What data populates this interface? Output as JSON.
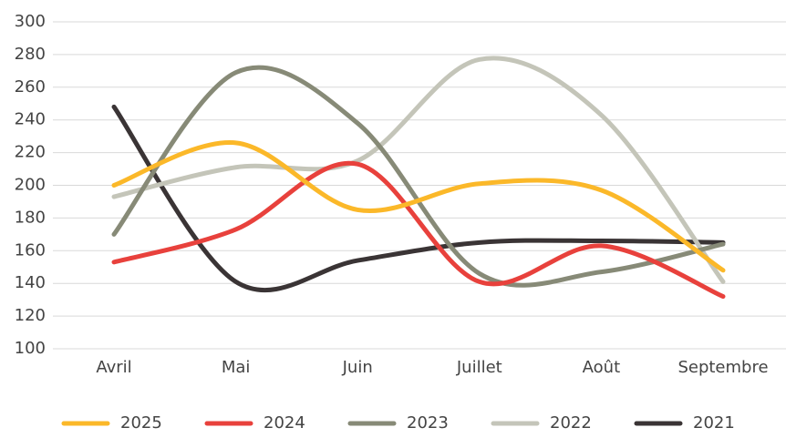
{
  "chart_data": {
    "type": "line",
    "smooth": true,
    "categories": [
      "Avril",
      "Mai",
      "Juin",
      "Juillet",
      "Août",
      "Septembre"
    ],
    "series": [
      {
        "name": "2025",
        "color": "#fbb829",
        "values": [
          200,
          226,
          185,
          201,
          197,
          148
        ]
      },
      {
        "name": "2024",
        "color": "#e8413c",
        "values": [
          153,
          173,
          213,
          141,
          163,
          132
        ]
      },
      {
        "name": "2023",
        "color": "#878a77",
        "values": [
          170,
          269,
          238,
          146,
          147,
          164
        ]
      },
      {
        "name": "2022",
        "color": "#c4c5b9",
        "values": [
          193,
          211,
          215,
          277,
          243,
          141
        ]
      },
      {
        "name": "2021",
        "color": "#3a3435",
        "values": [
          248,
          141,
          154,
          165,
          166,
          165
        ]
      }
    ],
    "ylim": [
      100,
      300
    ],
    "yticks": [
      100,
      120,
      140,
      160,
      180,
      200,
      220,
      240,
      260,
      280,
      300
    ],
    "grid": true,
    "legend": "bottom"
  }
}
